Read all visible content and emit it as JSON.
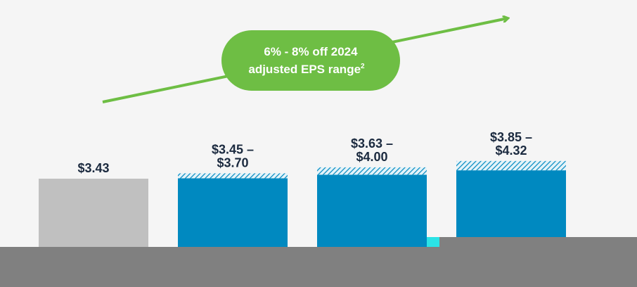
{
  "chart_data": {
    "type": "bar",
    "title": "",
    "xlabel": "",
    "ylabel": "",
    "categories": [
      "",
      "",
      "",
      ""
    ],
    "series": [
      {
        "values": [
          3.43,
          3.45,
          3.63,
          3.85
        ]
      },
      {
        "values": [
          0,
          0.25,
          0.37,
          0.47
        ]
      }
    ],
    "labels": [
      [
        "$3.43"
      ],
      [
        "$3.45 –",
        "$3.70"
      ],
      [
        "$3.63 –",
        "$4.00"
      ],
      [
        "$3.85 –",
        "$4.32"
      ]
    ],
    "colors": {
      "actual": "#c0c0c0",
      "base": "#0089c0",
      "range_hatch": "#0089c0",
      "range_bg": "#e4f3f9",
      "callout": "#6ebe44",
      "arrow": "#6ebe44",
      "label": "#1b2a3f",
      "footer": "#808080",
      "accent": "#2be3e6"
    },
    "grid": false,
    "legend": "none"
  },
  "callout": {
    "line1": "6% - 8% off 2024",
    "line2": "adjusted EPS range",
    "footnote": "2"
  }
}
